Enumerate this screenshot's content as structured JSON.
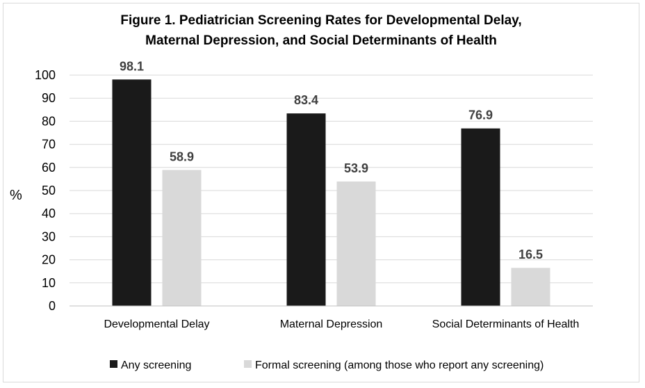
{
  "chart_data": {
    "type": "bar",
    "title_lines": [
      "Figure 1. Pediatrician Screening Rates for Developmental Delay,",
      "Maternal Depression, and Social Determinants of Health"
    ],
    "ylabel": "%",
    "xlabel": "",
    "ylim": [
      0,
      100
    ],
    "yticks": [
      0,
      10,
      20,
      30,
      40,
      50,
      60,
      70,
      80,
      90,
      100
    ],
    "grid": true,
    "legend_position": "bottom",
    "categories": [
      "Developmental Delay",
      "Maternal Depression",
      "Social Determinants of Health"
    ],
    "series": [
      {
        "name": "Any screening",
        "color": "#1a1a1a",
        "values": [
          98.1,
          83.4,
          76.9
        ],
        "labels": [
          "98.1",
          "83.4",
          "76.9"
        ]
      },
      {
        "name": "Formal screening (among those who report any screening)",
        "color": "#d9d9d9",
        "values": [
          58.9,
          53.9,
          16.5
        ],
        "labels": [
          "58.9",
          "53.9",
          "16.5"
        ]
      }
    ]
  }
}
